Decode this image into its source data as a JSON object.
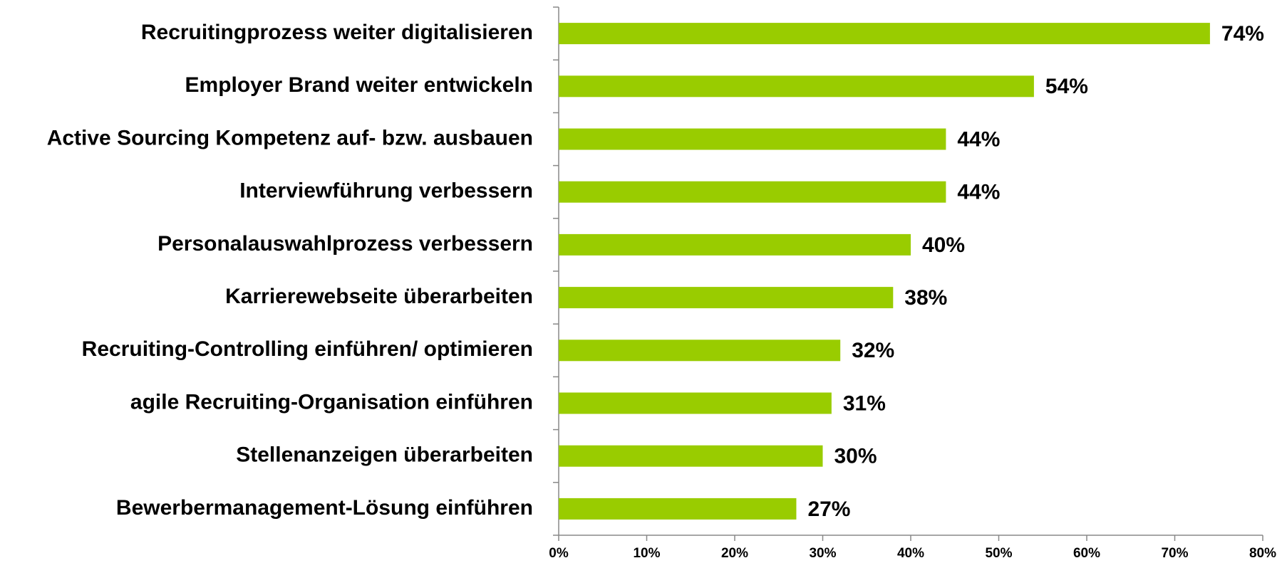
{
  "chart_data": {
    "type": "hbar",
    "categories": [
      "Recruitingprozess weiter digitalisieren",
      "Employer Brand weiter entwickeln",
      "Active Sourcing Kompetenz auf- bzw. ausbauen",
      "Interviewführung verbessern",
      "Personalauswahlprozess verbessern",
      "Karrierewebseite überarbeiten",
      "Recruiting-Controlling einführen/ optimieren",
      "agile Recruiting-Organisation einführen",
      "Stellenanzeigen überarbeiten",
      "Bewerbermanagement-Lösung einführen"
    ],
    "values": [
      74,
      54,
      44,
      44,
      40,
      38,
      32,
      31,
      30,
      27
    ],
    "value_labels": [
      "74%",
      "54%",
      "44%",
      "44%",
      "40%",
      "38%",
      "32%",
      "31%",
      "30%",
      "27%"
    ],
    "color": "#99cc00",
    "xlim": [
      0,
      80
    ],
    "xticks": [
      {
        "value": 0,
        "label": "0%"
      },
      {
        "value": 10,
        "label": "10%"
      },
      {
        "value": 20,
        "label": "20%"
      },
      {
        "value": 30,
        "label": "30%"
      },
      {
        "value": 40,
        "label": "40%"
      },
      {
        "value": 50,
        "label": "50%"
      },
      {
        "value": 60,
        "label": "60%"
      },
      {
        "value": 70,
        "label": "70%"
      },
      {
        "value": 80,
        "label": "80%"
      }
    ]
  }
}
